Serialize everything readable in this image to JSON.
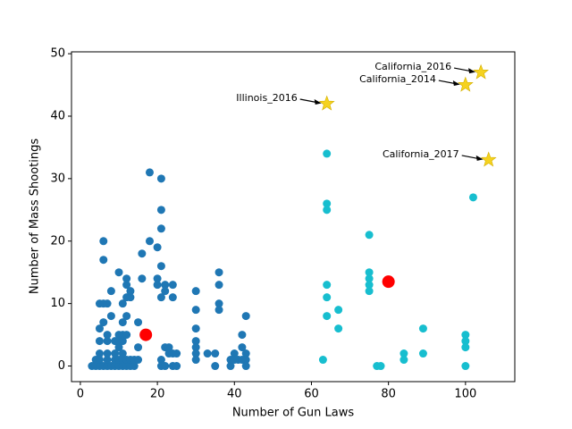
{
  "chart_data": {
    "type": "scatter",
    "x_label": "Number of Gun Laws",
    "y_label": "Number of Mass Shootings",
    "xlim": [
      -2.3,
      112.8
    ],
    "ylim": [
      -2.5,
      50.3
    ],
    "xticks": [
      0,
      20,
      40,
      60,
      80,
      100
    ],
    "yticks": [
      0,
      10,
      20,
      30,
      40,
      50
    ],
    "series": [
      {
        "color": "#1f77b4",
        "x": [
          3,
          4,
          4,
          5,
          5,
          5,
          5,
          5,
          5,
          6,
          6,
          6,
          6,
          6,
          7,
          7,
          7,
          7,
          7,
          7,
          8,
          8,
          8,
          9,
          9,
          9,
          9,
          10,
          10,
          10,
          10,
          10,
          10,
          11,
          11,
          11,
          11,
          11,
          11,
          11,
          12,
          12,
          12,
          12,
          12,
          12,
          12,
          13,
          13,
          13,
          13,
          14,
          14,
          15,
          15,
          15,
          16,
          16,
          18,
          18,
          20,
          20,
          20,
          21,
          21,
          21,
          21,
          21,
          21,
          21,
          22,
          22,
          22,
          22,
          23,
          23,
          24,
          24,
          24,
          24,
          25,
          25,
          30,
          30,
          30,
          30,
          30,
          30,
          30,
          33,
          35,
          35,
          36,
          36,
          36,
          36,
          39,
          39,
          40,
          41,
          42,
          42,
          42,
          43,
          43,
          43,
          43,
          40
        ],
        "values": [
          0,
          0,
          1,
          0,
          1,
          2,
          4,
          6,
          10,
          0,
          10,
          20,
          17,
          7,
          0,
          1,
          2,
          4,
          5,
          10,
          0,
          8,
          12,
          0,
          1,
          2,
          4,
          0,
          1,
          3,
          5,
          15,
          4,
          0,
          1,
          2,
          4,
          5,
          10,
          7,
          0,
          1,
          8,
          11,
          13,
          14,
          5,
          0,
          1,
          11,
          12,
          0,
          1,
          1,
          3,
          7,
          14,
          18,
          31,
          20,
          19,
          14,
          13,
          30,
          25,
          22,
          16,
          11,
          1,
          0,
          12,
          13,
          3,
          0,
          2,
          3,
          11,
          13,
          2,
          0,
          0,
          2,
          12,
          9,
          6,
          4,
          3,
          2,
          1,
          2,
          2,
          0,
          15,
          13,
          10,
          9,
          0,
          1,
          2,
          1,
          5,
          3,
          1,
          8,
          2,
          1,
          0,
          1
        ]
      },
      {
        "color": "#17becf",
        "x": [
          63,
          64,
          64,
          64,
          64,
          64,
          64,
          67,
          67,
          75,
          75,
          75,
          75,
          75,
          77,
          78,
          84,
          84,
          89,
          89,
          100,
          100,
          100,
          100,
          102
        ],
        "values": [
          1,
          34,
          26,
          25,
          13,
          11,
          8,
          9,
          6,
          21,
          15,
          14,
          13,
          12,
          0,
          0,
          2,
          1,
          6,
          2,
          5,
          4,
          3,
          0,
          27
        ]
      }
    ],
    "centroids": {
      "color": "#ff0000",
      "x": [
        17,
        80
      ],
      "values": [
        5,
        13.5
      ]
    },
    "highlights": {
      "color": "#f5d21f",
      "points": [
        {
          "label": "California_2016",
          "x": 104,
          "y": 47
        },
        {
          "label": "California_2014",
          "x": 100,
          "y": 45
        },
        {
          "label": "Illinois_2016",
          "x": 64,
          "y": 42
        },
        {
          "label": "California_2017",
          "x": 106,
          "y": 33
        }
      ]
    }
  }
}
